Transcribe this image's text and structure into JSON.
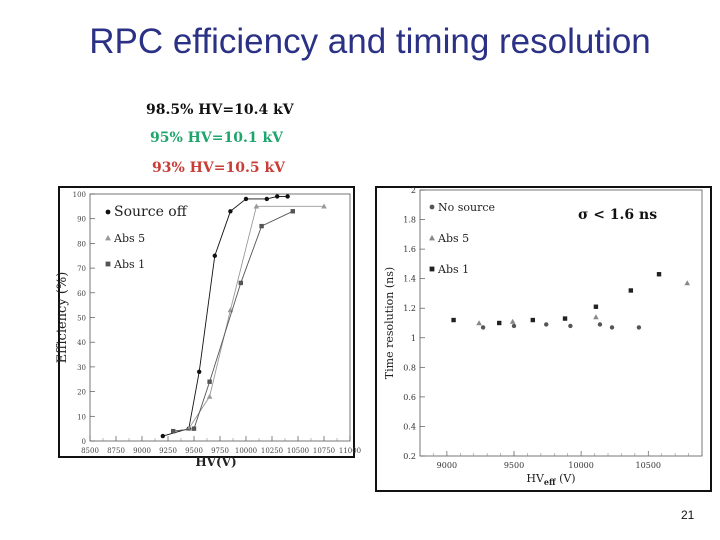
{
  "slide": {
    "title": "RPC efficiency and timing resolution",
    "notes": [
      {
        "text": "98.5% HV=10.4 kV",
        "color": "#111111"
      },
      {
        "text": "95% HV=10.1 kV",
        "color": "#1ea56b"
      },
      {
        "text": "93% HV=10.5 kV",
        "color": "#c93d36"
      }
    ],
    "page_number": "21"
  },
  "chart_data": [
    {
      "type": "line",
      "xlabel": "HV(V)",
      "ylabel": "Efficiency (%)",
      "xlim": [
        8500,
        11000
      ],
      "ylim": [
        0,
        100
      ],
      "x_ticks": [
        "8500",
        "8750",
        "9000",
        "9250",
        "9500",
        "9750",
        "10000",
        "10250",
        "10500",
        "10750",
        "11000"
      ],
      "y_ticks": [
        "0",
        "10",
        "20",
        "30",
        "40",
        "50",
        "60",
        "70",
        "80",
        "90",
        "100"
      ],
      "series": [
        {
          "name": "Source off",
          "marker": "circle",
          "color": "#111111",
          "x": [
            9200,
            9450,
            9550,
            9700,
            9850,
            10000,
            10200,
            10300,
            10400
          ],
          "y": [
            2,
            5,
            28,
            75,
            93,
            98,
            98,
            99,
            99
          ]
        },
        {
          "name": "Abs 5",
          "marker": "triangle",
          "color": "#999999",
          "x": [
            9450,
            9650,
            9850,
            10100,
            10750
          ],
          "y": [
            5,
            18,
            53,
            95,
            95
          ]
        },
        {
          "name": "Abs 1",
          "marker": "square",
          "color": "#555555",
          "x": [
            9300,
            9500,
            9650,
            9950,
            10150,
            10450
          ],
          "y": [
            4,
            5,
            24,
            64,
            87,
            93
          ]
        }
      ]
    },
    {
      "type": "scatter",
      "xlabel": "HV",
      "xlabel_subscript": "eff",
      "xlabel_unit": " (V)",
      "ylabel": "Time resolution (ns)",
      "xlim": [
        8800,
        10900
      ],
      "ylim": [
        0.2,
        2.0
      ],
      "x_ticks": [
        "9000",
        "9500",
        "10000",
        "10500"
      ],
      "y_ticks": [
        "0.2",
        "0.4",
        "0.6",
        "0.8",
        "1",
        "1.2",
        "1.4",
        "1.6",
        "1.8",
        "2"
      ],
      "annotation": "σ < 1.6 ns",
      "series": [
        {
          "name": "No source",
          "marker": "circle",
          "color": "#555555",
          "x": [
            9270,
            9500,
            9740,
            9920,
            10140,
            10230,
            10430
          ],
          "y": [
            1.07,
            1.08,
            1.09,
            1.08,
            1.09,
            1.07,
            1.07
          ]
        },
        {
          "name": "Abs 5",
          "marker": "triangle",
          "color": "#888888",
          "x": [
            9240,
            9490,
            10110,
            10790
          ],
          "y": [
            1.1,
            1.11,
            1.14,
            1.37
          ]
        },
        {
          "name": "Abs 1",
          "marker": "square",
          "color": "#222222",
          "x": [
            9050,
            9390,
            9640,
            9880,
            10110,
            10370,
            10580
          ],
          "y": [
            1.12,
            1.1,
            1.12,
            1.13,
            1.21,
            1.32,
            1.43
          ]
        }
      ]
    }
  ]
}
